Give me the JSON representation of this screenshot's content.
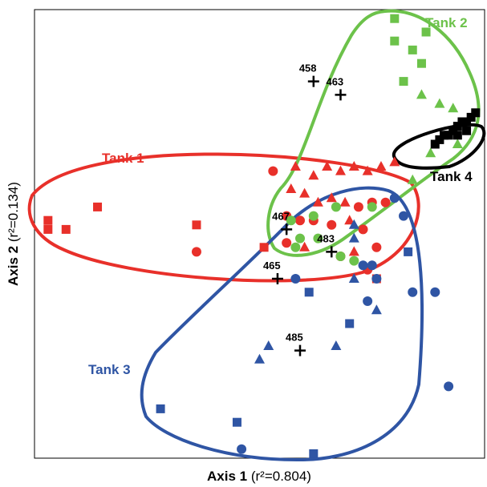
{
  "colors": {
    "tank1": "#e8302a",
    "tank2": "#6cc24a",
    "tank3": "#2f55a4",
    "tank4": "#000000"
  },
  "chart_data": {
    "type": "scatter",
    "title": "",
    "xlabel_bold": "Axis 1",
    "xlabel_rest": "(r²=0.804)",
    "ylabel_bold": "Axis 2",
    "ylabel_rest": "(r²=0.134)",
    "xlim": [
      0,
      100
    ],
    "ylim": [
      0,
      100
    ],
    "grid": false,
    "legend": "none",
    "marker_shapes": [
      "square",
      "circle",
      "triangle"
    ],
    "series": [
      {
        "name": "Tank 1",
        "color_key": "tank1",
        "points": [
          {
            "x": 3,
            "y": 53,
            "m": "square"
          },
          {
            "x": 3,
            "y": 51,
            "m": "square"
          },
          {
            "x": 7,
            "y": 51,
            "m": "square"
          },
          {
            "x": 14,
            "y": 56,
            "m": "square"
          },
          {
            "x": 36,
            "y": 46,
            "m": "circle"
          },
          {
            "x": 36,
            "y": 52,
            "m": "square"
          },
          {
            "x": 53,
            "y": 64,
            "m": "circle"
          },
          {
            "x": 58,
            "y": 65,
            "m": "triangle"
          },
          {
            "x": 62,
            "y": 63,
            "m": "triangle"
          },
          {
            "x": 65,
            "y": 65,
            "m": "triangle"
          },
          {
            "x": 68,
            "y": 64,
            "m": "triangle"
          },
          {
            "x": 71,
            "y": 65,
            "m": "triangle"
          },
          {
            "x": 74,
            "y": 64,
            "m": "triangle"
          },
          {
            "x": 77,
            "y": 65,
            "m": "triangle"
          },
          {
            "x": 80,
            "y": 66,
            "m": "triangle"
          },
          {
            "x": 57,
            "y": 60,
            "m": "triangle"
          },
          {
            "x": 60,
            "y": 59,
            "m": "triangle"
          },
          {
            "x": 63,
            "y": 57,
            "m": "triangle"
          },
          {
            "x": 66,
            "y": 58,
            "m": "triangle"
          },
          {
            "x": 69,
            "y": 57,
            "m": "triangle"
          },
          {
            "x": 72,
            "y": 56,
            "m": "circle"
          },
          {
            "x": 75,
            "y": 57,
            "m": "circle"
          },
          {
            "x": 78,
            "y": 57,
            "m": "circle"
          },
          {
            "x": 56,
            "y": 54,
            "m": "circle"
          },
          {
            "x": 59,
            "y": 53,
            "m": "circle"
          },
          {
            "x": 62,
            "y": 53,
            "m": "circle"
          },
          {
            "x": 66,
            "y": 52,
            "m": "circle"
          },
          {
            "x": 70,
            "y": 53,
            "m": "triangle"
          },
          {
            "x": 73,
            "y": 51,
            "m": "circle"
          },
          {
            "x": 76,
            "y": 47,
            "m": "circle"
          },
          {
            "x": 60,
            "y": 47,
            "m": "triangle"
          },
          {
            "x": 56,
            "y": 48,
            "m": "circle"
          },
          {
            "x": 74,
            "y": 42,
            "m": "circle"
          },
          {
            "x": 68,
            "y": 45,
            "m": "circle"
          },
          {
            "x": 71,
            "y": 46,
            "m": "triangle"
          },
          {
            "x": 76,
            "y": 40,
            "m": "square"
          },
          {
            "x": 51,
            "y": 47,
            "m": "square"
          }
        ]
      },
      {
        "name": "Tank 2",
        "color_key": "tank2",
        "points": [
          {
            "x": 80,
            "y": 98,
            "m": "square"
          },
          {
            "x": 87,
            "y": 95,
            "m": "square"
          },
          {
            "x": 80,
            "y": 93,
            "m": "square"
          },
          {
            "x": 84,
            "y": 91,
            "m": "square"
          },
          {
            "x": 86,
            "y": 88,
            "m": "square"
          },
          {
            "x": 82,
            "y": 84,
            "m": "square"
          },
          {
            "x": 86,
            "y": 81,
            "m": "triangle"
          },
          {
            "x": 90,
            "y": 79,
            "m": "triangle"
          },
          {
            "x": 93,
            "y": 78,
            "m": "triangle"
          },
          {
            "x": 94,
            "y": 70,
            "m": "triangle"
          },
          {
            "x": 88,
            "y": 68,
            "m": "triangle"
          },
          {
            "x": 84,
            "y": 62,
            "m": "triangle"
          },
          {
            "x": 75,
            "y": 56,
            "m": "circle"
          },
          {
            "x": 67,
            "y": 56,
            "m": "circle"
          },
          {
            "x": 62,
            "y": 54,
            "m": "circle"
          },
          {
            "x": 57,
            "y": 53,
            "m": "circle"
          },
          {
            "x": 59,
            "y": 49,
            "m": "circle"
          },
          {
            "x": 63,
            "y": 49,
            "m": "circle"
          },
          {
            "x": 68,
            "y": 45,
            "m": "circle"
          },
          {
            "x": 71,
            "y": 44,
            "m": "circle"
          },
          {
            "x": 58,
            "y": 47,
            "m": "circle"
          }
        ]
      },
      {
        "name": "Tank 3",
        "color_key": "tank3",
        "points": [
          {
            "x": 80,
            "y": 58,
            "m": "circle"
          },
          {
            "x": 82,
            "y": 54,
            "m": "circle"
          },
          {
            "x": 71,
            "y": 52,
            "m": "triangle"
          },
          {
            "x": 71,
            "y": 49,
            "m": "triangle"
          },
          {
            "x": 83,
            "y": 46,
            "m": "square"
          },
          {
            "x": 73,
            "y": 43,
            "m": "circle"
          },
          {
            "x": 75,
            "y": 43,
            "m": "circle"
          },
          {
            "x": 76,
            "y": 40,
            "m": "circle"
          },
          {
            "x": 71,
            "y": 40,
            "m": "triangle"
          },
          {
            "x": 58,
            "y": 40,
            "m": "circle"
          },
          {
            "x": 61,
            "y": 37,
            "m": "square"
          },
          {
            "x": 74,
            "y": 35,
            "m": "circle"
          },
          {
            "x": 76,
            "y": 33,
            "m": "triangle"
          },
          {
            "x": 84,
            "y": 37,
            "m": "circle"
          },
          {
            "x": 89,
            "y": 37,
            "m": "circle"
          },
          {
            "x": 70,
            "y": 30,
            "m": "square"
          },
          {
            "x": 67,
            "y": 25,
            "m": "triangle"
          },
          {
            "x": 52,
            "y": 25,
            "m": "triangle"
          },
          {
            "x": 50,
            "y": 22,
            "m": "triangle"
          },
          {
            "x": 92,
            "y": 16,
            "m": "circle"
          },
          {
            "x": 28,
            "y": 11,
            "m": "square"
          },
          {
            "x": 45,
            "y": 8,
            "m": "square"
          },
          {
            "x": 46,
            "y": 2,
            "m": "circle"
          },
          {
            "x": 62,
            "y": 1,
            "m": "square"
          }
        ]
      },
      {
        "name": "Tank 4",
        "color_key": "tank4",
        "points": [
          {
            "x": 89,
            "y": 70,
            "m": "square"
          },
          {
            "x": 90,
            "y": 71,
            "m": "square"
          },
          {
            "x": 91,
            "y": 72,
            "m": "square"
          },
          {
            "x": 92,
            "y": 72,
            "m": "square"
          },
          {
            "x": 93,
            "y": 73,
            "m": "square"
          },
          {
            "x": 94,
            "y": 74,
            "m": "square"
          },
          {
            "x": 95,
            "y": 75,
            "m": "square"
          },
          {
            "x": 96,
            "y": 75,
            "m": "square"
          },
          {
            "x": 97,
            "y": 76,
            "m": "square"
          },
          {
            "x": 98,
            "y": 77,
            "m": "square"
          },
          {
            "x": 94,
            "y": 72,
            "m": "square"
          },
          {
            "x": 96,
            "y": 73,
            "m": "square"
          }
        ]
      }
    ],
    "centroids": [
      {
        "label": "458",
        "x": 62,
        "y": 84
      },
      {
        "label": "463",
        "x": 68,
        "y": 81
      },
      {
        "label": "467",
        "x": 56,
        "y": 51
      },
      {
        "label": "483",
        "x": 66,
        "y": 46
      },
      {
        "label": "465",
        "x": 54,
        "y": 40
      },
      {
        "label": "485",
        "x": 59,
        "y": 24
      }
    ]
  }
}
